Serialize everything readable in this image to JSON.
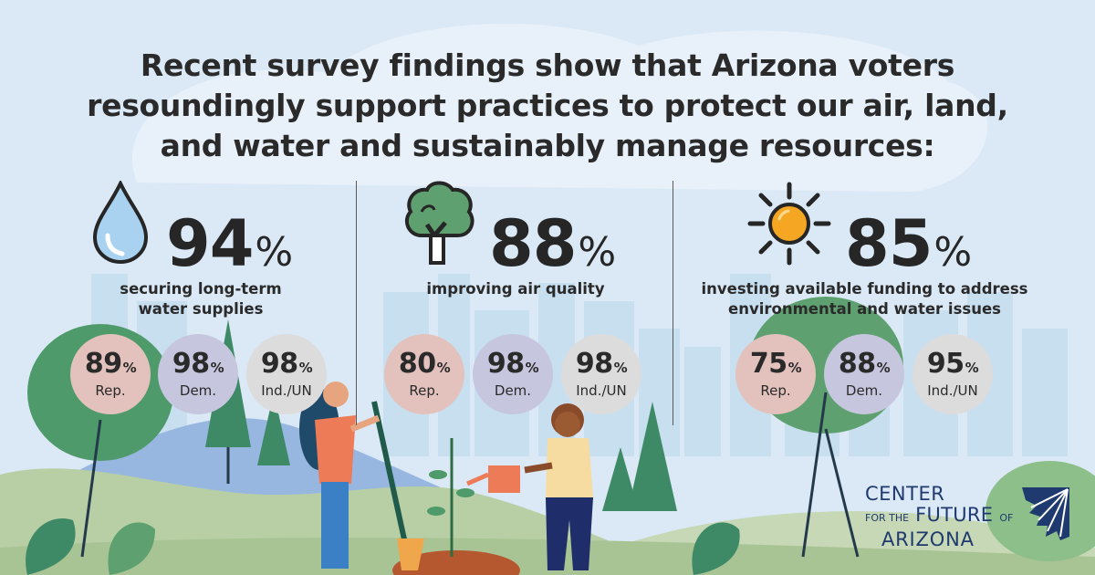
{
  "headline": [
    "Recent survey findings show that Arizona voters",
    "resoundingly support practices to protect our air, land,",
    "and water and sustainably manage resources:"
  ],
  "stats": [
    {
      "icon": "water-drop-icon",
      "value": "94",
      "unit": "%",
      "desc": [
        "securing long-term",
        "water supplies"
      ],
      "parties": [
        {
          "value": "89",
          "unit": "%",
          "label": "Rep."
        },
        {
          "value": "98",
          "unit": "%",
          "label": "Dem."
        },
        {
          "value": "98",
          "unit": "%",
          "label": "Ind./UN"
        }
      ]
    },
    {
      "icon": "tree-icon",
      "value": "88",
      "unit": "%",
      "desc": [
        "improving air quality"
      ],
      "parties": [
        {
          "value": "80",
          "unit": "%",
          "label": "Rep."
        },
        {
          "value": "98",
          "unit": "%",
          "label": "Dem."
        },
        {
          "value": "98",
          "unit": "%",
          "label": "Ind./UN"
        }
      ]
    },
    {
      "icon": "sun-icon",
      "value": "85",
      "unit": "%",
      "desc": [
        "investing available funding to address",
        "environmental and water issues"
      ],
      "parties": [
        {
          "value": "75",
          "unit": "%",
          "label": "Rep."
        },
        {
          "value": "88",
          "unit": "%",
          "label": "Dem."
        },
        {
          "value": "95",
          "unit": "%",
          "label": "Ind./UN"
        }
      ]
    }
  ],
  "logo": {
    "line1": "CENTER",
    "line2_small_a": "FOR THE",
    "line2_big": "FUTURE",
    "line2_small_b": "OF",
    "line3": "ARIZONA"
  },
  "colors": {
    "background": "#dbe9f6",
    "rep": "#e3c2bd",
    "dem": "#c7c6df",
    "ind": "#dcdcdc",
    "sun": "#f5a623",
    "logo": "#1f3a6e"
  }
}
